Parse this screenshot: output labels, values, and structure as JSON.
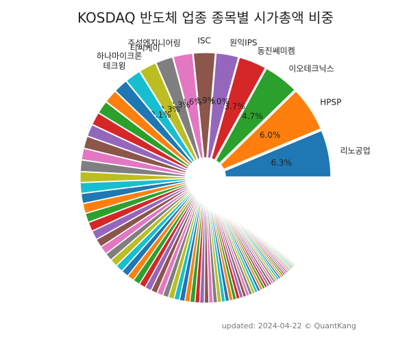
{
  "chart_data": {
    "type": "pie",
    "title": "KOSDAQ 반도체 업종 종목별 시가총액 비중",
    "start_angle_deg": 0,
    "direction": "counterclockwise",
    "exploded": true,
    "labeled_slices": [
      {
        "name": "리노공업",
        "percent": 6.3,
        "color": "#1f77b4"
      },
      {
        "name": "HPSP",
        "percent": 6.0,
        "color": "#ff7f0e"
      },
      {
        "name": "이오테크닉스",
        "percent": 4.7,
        "color": "#2ca02c"
      },
      {
        "name": "동진쎄미켐",
        "percent": 3.7,
        "color": "#d62728"
      },
      {
        "name": "원익IPS",
        "percent": 3.0,
        "color": "#9467bd"
      },
      {
        "name": "ISC",
        "percent": 2.9,
        "color": "#8c564b"
      },
      {
        "name": "주성엔지니어링",
        "percent": 2.6,
        "color": "#e377c2"
      },
      {
        "name": "티씨케이",
        "percent": 2.3,
        "color": "#7f7f7f"
      },
      {
        "name": "하나마이크론",
        "percent": 2.3,
        "color": "#bcbd22"
      },
      {
        "name": "테크윙",
        "percent": 2.1,
        "color": "#17becf"
      }
    ],
    "unlabeled_slices_percent": [
      1.9,
      1.8,
      1.7,
      1.7,
      1.6,
      1.6,
      1.5,
      1.5,
      1.4,
      1.4,
      1.3,
      1.3,
      1.2,
      1.2,
      1.2,
      1.1,
      1.1,
      1.0,
      1.0,
      1.0,
      0.95,
      0.9,
      0.9,
      0.85,
      0.85,
      0.8,
      0.8,
      0.75,
      0.75,
      0.7,
      0.7,
      0.65,
      0.65,
      0.6,
      0.6,
      0.58,
      0.55,
      0.55,
      0.52,
      0.5,
      0.5,
      0.48,
      0.46,
      0.45,
      0.44,
      0.42,
      0.41,
      0.4,
      0.38,
      0.37,
      0.36,
      0.35,
      0.34,
      0.33,
      0.32,
      0.31,
      0.3,
      0.29,
      0.28,
      0.27,
      0.26,
      0.25,
      0.24,
      0.23,
      0.22,
      0.21,
      0.2,
      0.19,
      0.18,
      0.17,
      0.16,
      0.15,
      0.14,
      0.13,
      0.12,
      0.11,
      0.1,
      0.1
    ],
    "remaining_blank_percent": 7.5,
    "palette": [
      "#1f77b4",
      "#ff7f0e",
      "#2ca02c",
      "#d62728",
      "#9467bd",
      "#8c564b",
      "#e377c2",
      "#7f7f7f",
      "#bcbd22",
      "#17becf"
    ]
  },
  "footer": {
    "text": "updated: 2024-04-22 © QuantKang"
  }
}
